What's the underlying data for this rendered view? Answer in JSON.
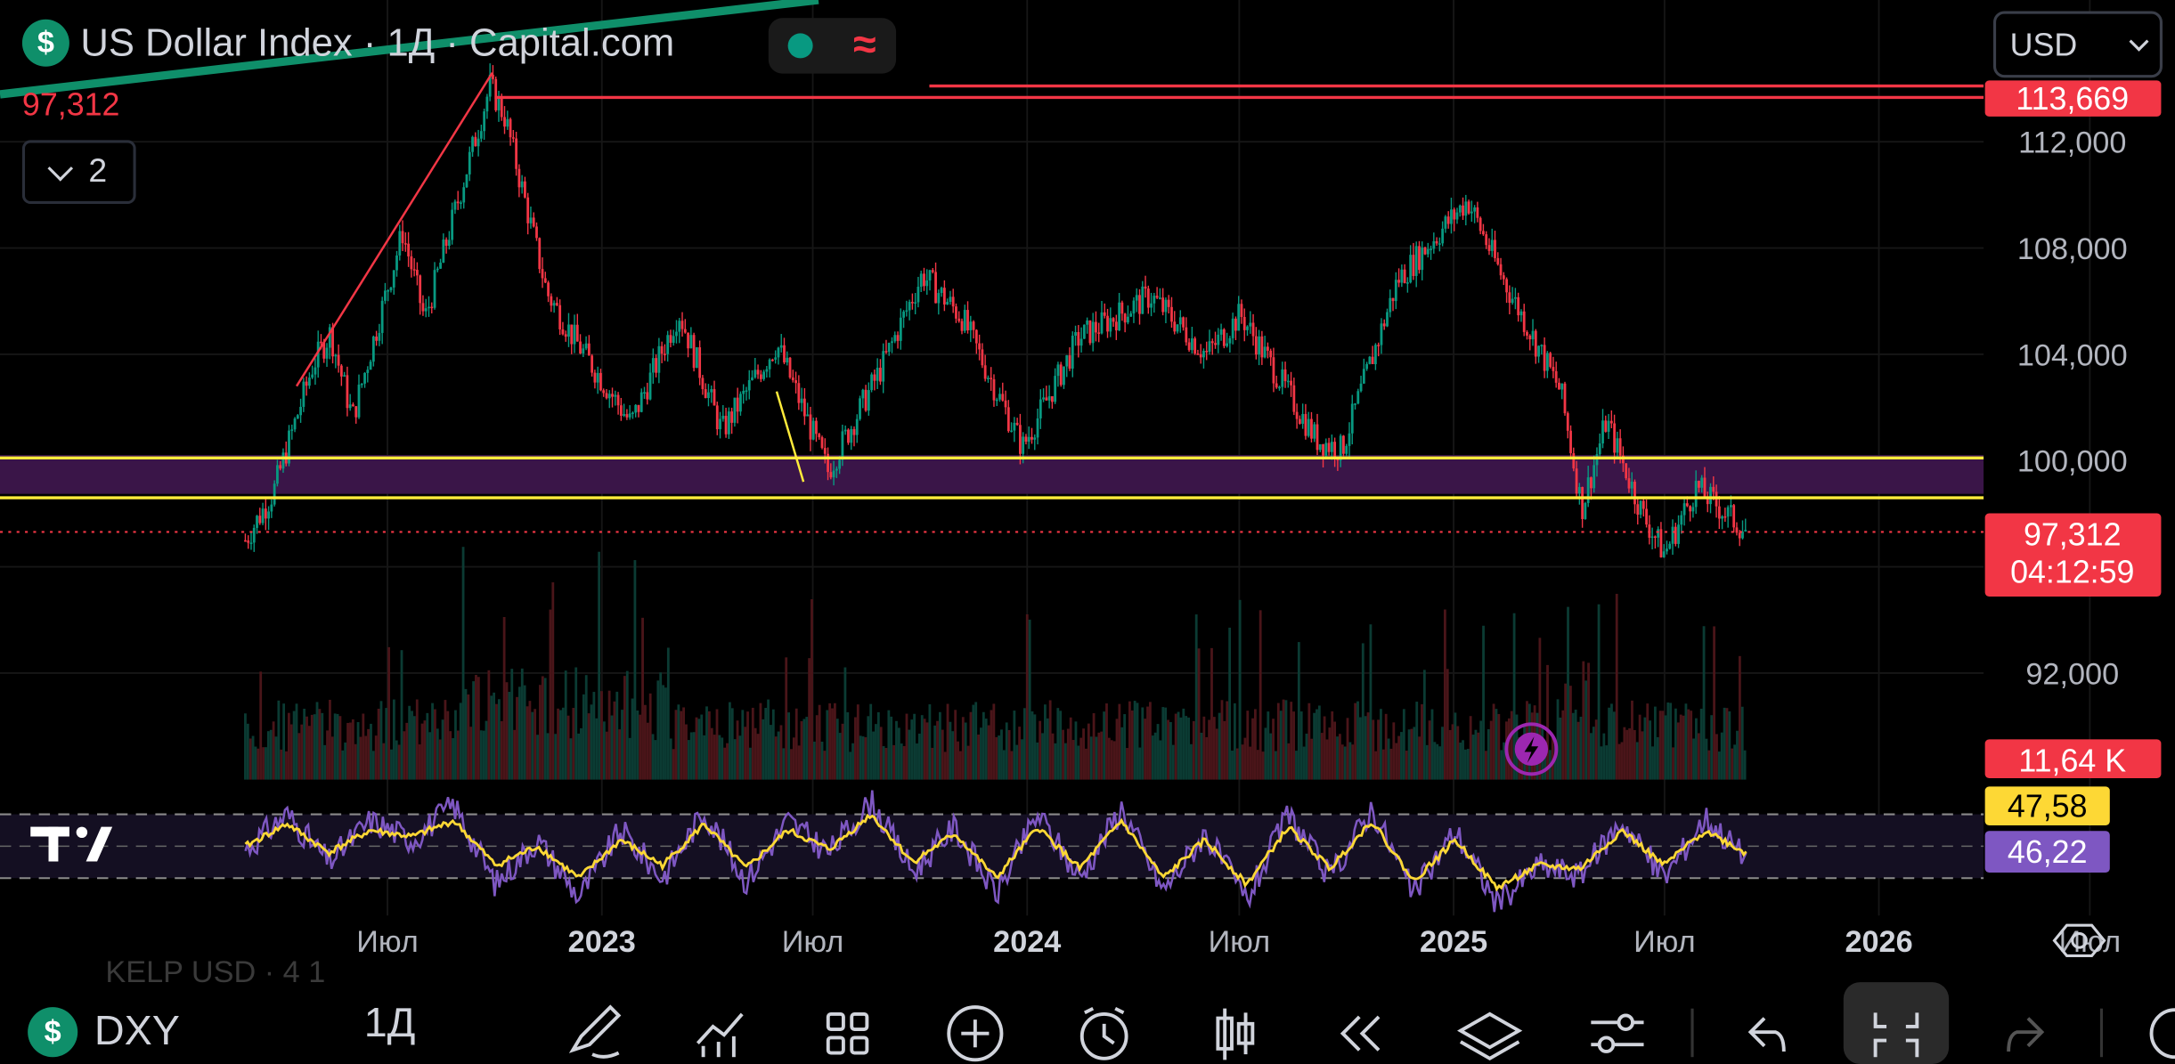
{
  "header": {
    "coin_symbol": "$",
    "title": "US Dollar Index · 1Д · Capital.com",
    "last_price": "97,312",
    "indicators_count": "2",
    "currency": "USD"
  },
  "price_labels": {
    "alert_line": "113,669",
    "current_price": "97,312",
    "countdown": "04:12:59",
    "volume": "11,64 K",
    "rsi_ma": "47,58",
    "rsi": "46,22"
  },
  "colors": {
    "up": "#089981",
    "down": "#f23645",
    "support_zone": "#ffeb3b",
    "rsi_line": "#7e57c2",
    "rsi_ma": "#fdd835",
    "background": "#000000"
  },
  "chart_data": [
    {
      "type": "candlestick",
      "title": "US Dollar Index · 1Д · Capital.com",
      "x_tick_labels": [
        "Июл",
        "2023",
        "Июл",
        "2024",
        "Июл",
        "2025",
        "Июл",
        "2026",
        "Июл"
      ],
      "y_tick_labels": [
        "112,000",
        "108,000",
        "104,000",
        "100,000",
        "92,000"
      ],
      "ylim": [
        90.6,
        115
      ],
      "close_path": [
        {
          "date": "2022-03-01",
          "value": 97.0
        },
        {
          "date": "2022-03-25",
          "value": 98.8
        },
        {
          "date": "2022-04-28",
          "value": 103.6
        },
        {
          "date": "2022-05-13",
          "value": 104.8
        },
        {
          "date": "2022-06-01",
          "value": 101.6
        },
        {
          "date": "2022-07-14",
          "value": 108.6
        },
        {
          "date": "2022-08-02",
          "value": 105.3
        },
        {
          "date": "2022-09-27",
          "value": 114.1
        },
        {
          "date": "2022-10-10",
          "value": 112.9
        },
        {
          "date": "2022-11-15",
          "value": 106.3
        },
        {
          "date": "2022-12-08",
          "value": 104.6
        },
        {
          "date": "2023-01-26",
          "value": 101.4
        },
        {
          "date": "2023-03-08",
          "value": 105.6
        },
        {
          "date": "2023-04-14",
          "value": 101.1
        },
        {
          "date": "2023-05-31",
          "value": 104.4
        },
        {
          "date": "2023-07-14",
          "value": 99.6
        },
        {
          "date": "2023-08-29",
          "value": 103.5
        },
        {
          "date": "2023-10-03",
          "value": 107.0
        },
        {
          "date": "2023-11-06",
          "value": 105.4
        },
        {
          "date": "2023-12-28",
          "value": 100.5
        },
        {
          "date": "2024-02-14",
          "value": 104.6
        },
        {
          "date": "2024-04-16",
          "value": 106.2
        },
        {
          "date": "2024-06-03",
          "value": 104.0
        },
        {
          "date": "2024-07-02",
          "value": 105.5
        },
        {
          "date": "2024-09-05",
          "value": 100.8
        },
        {
          "date": "2024-09-27",
          "value": 100.4
        },
        {
          "date": "2024-11-14",
          "value": 106.8
        },
        {
          "date": "2025-01-13",
          "value": 109.8
        },
        {
          "date": "2025-02-14",
          "value": 106.7
        },
        {
          "date": "2025-04-03",
          "value": 102.6
        },
        {
          "date": "2025-04-21",
          "value": 98.2
        },
        {
          "date": "2025-05-12",
          "value": 101.5
        },
        {
          "date": "2025-06-13",
          "value": 97.9
        },
        {
          "date": "2025-07-01",
          "value": 96.5
        },
        {
          "date": "2025-07-28",
          "value": 99.0
        },
        {
          "date": "2025-09-10",
          "value": 97.3
        }
      ],
      "horizontal_lines": [
        {
          "value": 114.1,
          "color": "#f23645",
          "style": "solid"
        },
        {
          "value": 113.669,
          "color": "#f23645",
          "style": "solid",
          "label": "113,669"
        },
        {
          "value": 100.1,
          "color": "#ffeb3b",
          "style": "solid"
        },
        {
          "value": 98.6,
          "color": "#ffeb3b",
          "style": "solid"
        },
        {
          "value": 97.312,
          "color": "#f23645",
          "style": "dotted",
          "label": "97,312"
        }
      ],
      "trendlines": [
        {
          "from": {
            "date": "2022-04-14",
            "value": 102.8
          },
          "to": {
            "date": "2022-09-29",
            "value": 114.6
          },
          "color": "#f23645"
        },
        {
          "from": {
            "date": "2023-05-31",
            "value": 102.6
          },
          "to": {
            "date": "2023-06-23",
            "value": 99.2
          },
          "color": "#ffeb3b"
        }
      ]
    },
    {
      "type": "bar",
      "title": "Volume",
      "last_value": "11,64 K"
    },
    {
      "type": "line",
      "title": "RSI",
      "series": [
        {
          "values": [
            49,
            60,
            45,
            58,
            52,
            63,
            38,
            52,
            34,
            55,
            40,
            61,
            39,
            58,
            48,
            64,
            42,
            56,
            35,
            60,
            40,
            62,
            36,
            54,
            33,
            60,
            40,
            62,
            35,
            55,
            32,
            44,
            41,
            58,
            40,
            59,
            46
          ]
        },
        {
          "values": [
            50,
            57,
            48,
            55,
            53,
            58,
            44,
            50,
            40,
            52,
            44,
            57,
            43,
            55,
            49,
            60,
            45,
            54,
            40,
            56,
            43,
            58,
            40,
            52,
            38,
            56,
            43,
            58,
            39,
            52,
            37,
            44,
            43,
            55,
            44,
            55,
            47.6
          ]
        }
      ],
      "last_values": {
        "ma": "47,58",
        "rsi": "46,22"
      }
    }
  ],
  "toolbar": {
    "symbol_coin": "$",
    "symbol": "DXY",
    "interval": "1Д",
    "ghost_text": "KELP USD · 4 1"
  }
}
